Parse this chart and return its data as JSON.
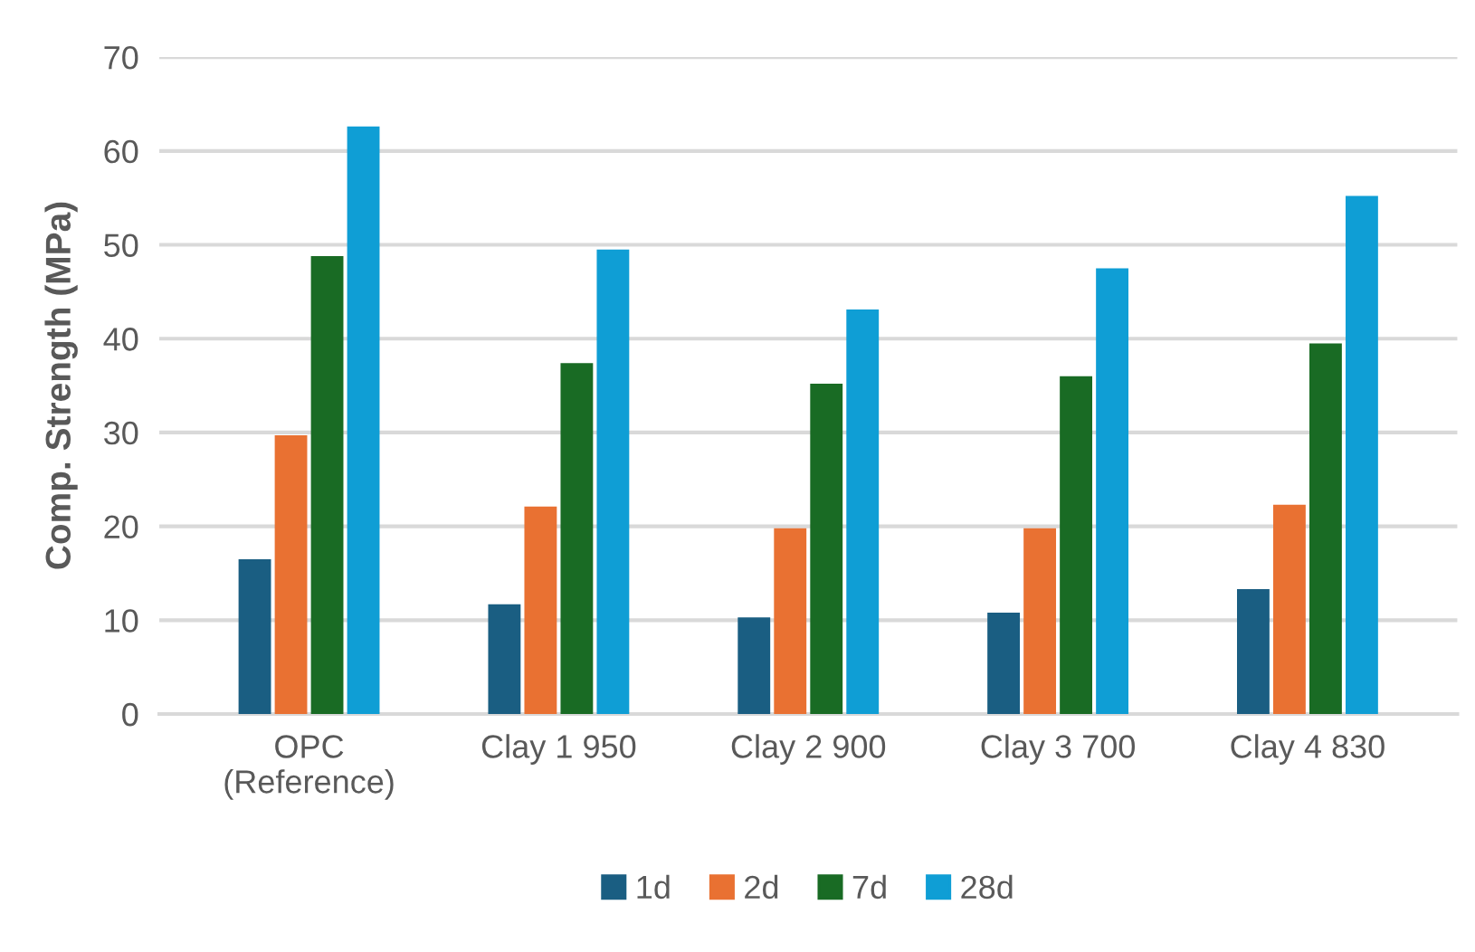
{
  "chart_data": {
    "type": "bar",
    "ylabel": "Comp. Strength (MPa)",
    "categories": [
      "OPC\n(Reference)",
      "Clay 1 950",
      "Clay 2 900",
      "Clay 3 700",
      "Clay 4 830"
    ],
    "series": [
      {
        "name": "1d",
        "color": "#1a5e82",
        "values": [
          16.5,
          11.7,
          10.3,
          10.8,
          13.3
        ]
      },
      {
        "name": "2d",
        "color": "#e97132",
        "values": [
          29.7,
          22.1,
          19.8,
          19.8,
          22.3
        ]
      },
      {
        "name": "7d",
        "color": "#196b24",
        "values": [
          48.8,
          37.4,
          35.2,
          36.0,
          39.5
        ]
      },
      {
        "name": "28d",
        "color": "#0f9ed5",
        "values": [
          62.6,
          49.5,
          43.1,
          47.5,
          55.2
        ]
      }
    ],
    "ylim": [
      0,
      70
    ],
    "yticks": [
      0,
      10,
      20,
      30,
      40,
      50,
      60,
      70
    ],
    "grid": "y",
    "legend": "bottom"
  }
}
